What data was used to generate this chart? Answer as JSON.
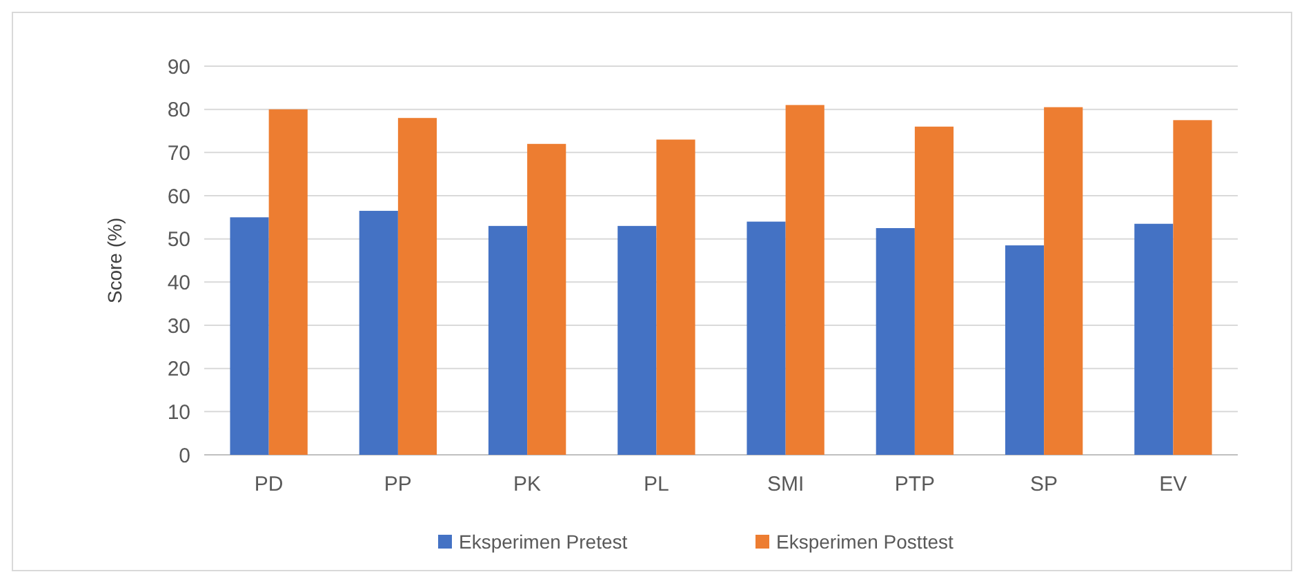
{
  "chart_data": {
    "type": "bar",
    "ylabel": "Score (%)",
    "categories": [
      "PD",
      "PP",
      "PK",
      "PL",
      "SMI",
      "PTP",
      "SP",
      "EV"
    ],
    "series": [
      {
        "name": "Eksperimen Pretest",
        "color": "#4472c4",
        "values": [
          55,
          56.5,
          53,
          53,
          54,
          52.5,
          48.5,
          53.5
        ]
      },
      {
        "name": "Eksperimen Posttest",
        "color": "#ed7d31",
        "values": [
          80,
          78,
          72,
          73,
          81,
          76,
          80.5,
          77.5
        ]
      }
    ],
    "ylim": [
      0,
      90
    ],
    "yticks": [
      0,
      10,
      20,
      30,
      40,
      50,
      60,
      70,
      80,
      90
    ],
    "grid": "y",
    "legend": "bottom"
  }
}
